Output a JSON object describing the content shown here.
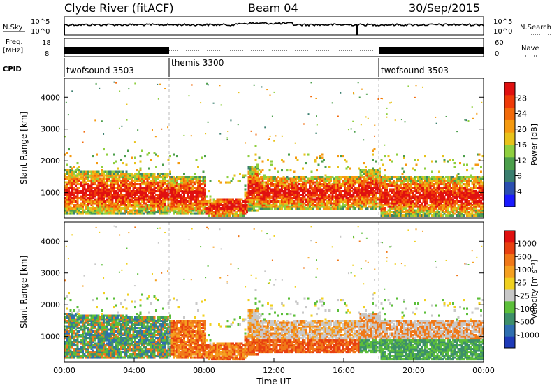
{
  "header": {
    "station": "Clyde River (fitACF)",
    "beam": "Beam 04",
    "date": "30/Sep/2015"
  },
  "left_labels": {
    "nsky": "N.Sky",
    "freq": "Freq.",
    "freq_unit": "[MHz]",
    "cpid": "CPID"
  },
  "right_labels": {
    "nsearch": "N.Search",
    "nave": "Nave"
  },
  "noise_axis": {
    "top": "10^5",
    "bottom": "10^0"
  },
  "freq_axis": {
    "top": "18",
    "bottom": "8"
  },
  "nave_axis": {
    "top": "60",
    "bottom": "0"
  },
  "cpid_segments": [
    {
      "label": "twofsound 3503",
      "start_hour": 0,
      "end_hour": 6
    },
    {
      "label": "themis 3300",
      "start_hour": 6,
      "end_hour": 18
    },
    {
      "label": "twofsound 3503",
      "start_hour": 18,
      "end_hour": 24
    }
  ],
  "chart_data": [
    {
      "type": "heatmap",
      "name": "power",
      "ylabel": "Slant Range [km]",
      "y_ticks": [
        "1000",
        "2000",
        "3000",
        "4000"
      ],
      "ylim": [
        200,
        4600
      ],
      "xlim": [
        0,
        24
      ],
      "colorbar_label": "Power [dB]",
      "colorbar_ticks": [
        "4",
        "8",
        "12",
        "16",
        "20",
        "24",
        "28"
      ],
      "colorbar_colors": [
        "#1a1aff",
        "#2b4fb0",
        "#3b7f6f",
        "#4c9f4c",
        "#8fcf3f",
        "#e8c21a",
        "#f59a10",
        "#f26a0a",
        "#ef3a08",
        "#e01010"
      ]
    },
    {
      "type": "heatmap",
      "name": "velocity",
      "ylabel": "Slant Range [km]",
      "y_ticks": [
        "1000",
        "2000",
        "3000",
        "4000"
      ],
      "ylim": [
        200,
        4600
      ],
      "xlim": [
        0,
        24
      ],
      "xlabel": "Time UT",
      "x_ticks": [
        "00:00",
        "04:00",
        "08:00",
        "12:00",
        "16:00",
        "20:00",
        "00:00"
      ],
      "colorbar_label": "Velocity [m s⁻¹]",
      "colorbar_ticks": [
        "1000",
        "500",
        "100",
        "25",
        "-25",
        "-100",
        "-500",
        "-1000"
      ],
      "colorbar_colors": [
        "#1e3ab8",
        "#2f6fb0",
        "#3d8f6a",
        "#5cbf3a",
        "#c8c8c8",
        "#f0d020",
        "#f5a020",
        "#f07818",
        "#e84010",
        "#e01010"
      ]
    }
  ]
}
